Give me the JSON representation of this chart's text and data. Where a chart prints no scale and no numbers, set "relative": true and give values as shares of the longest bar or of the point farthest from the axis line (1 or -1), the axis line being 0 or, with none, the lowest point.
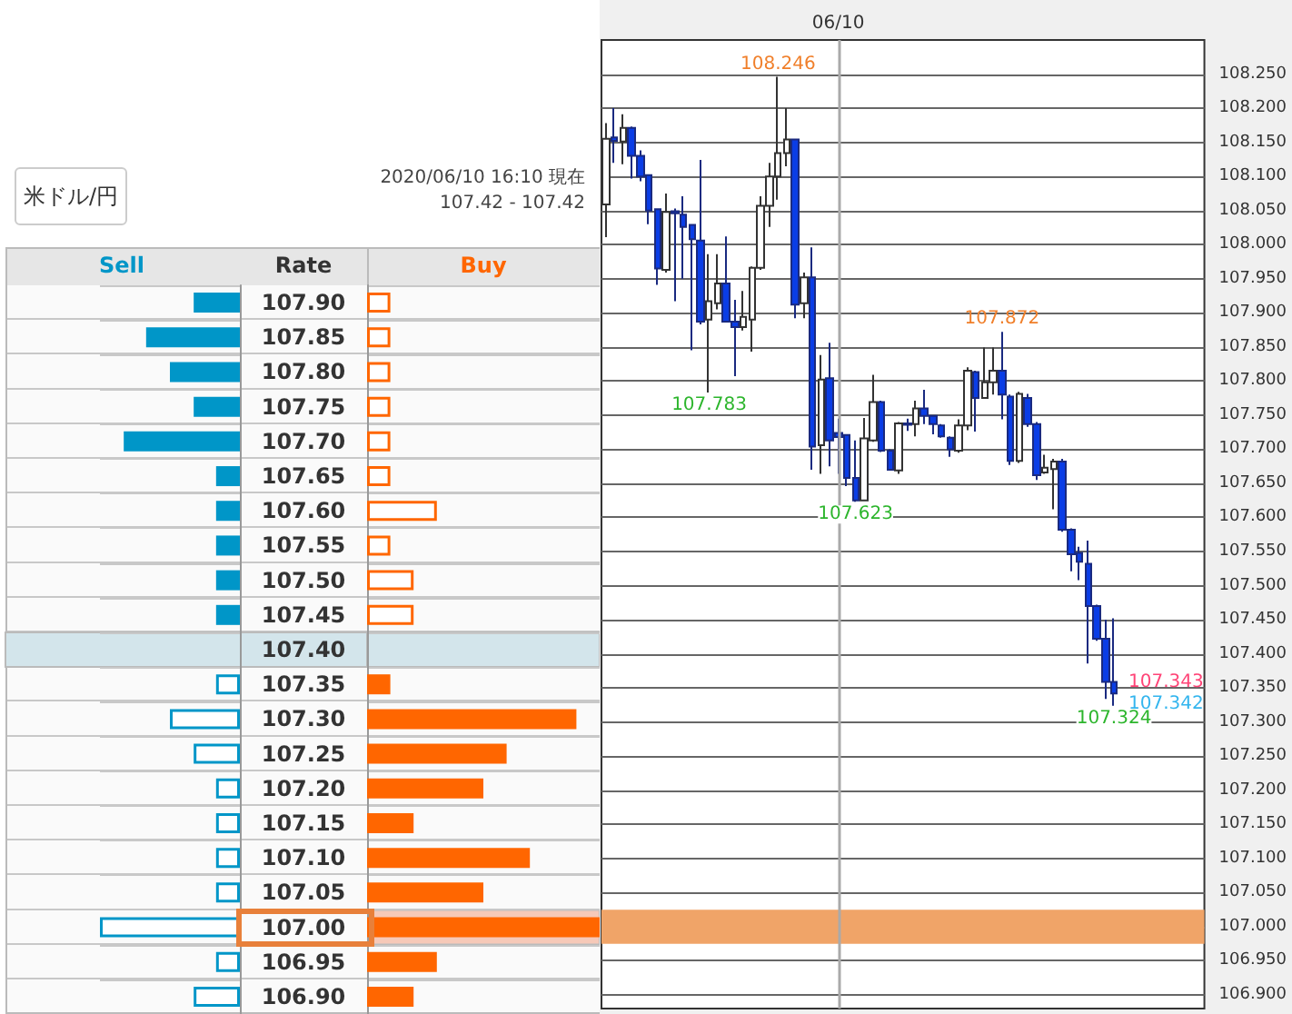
{
  "chart_data": [
    {
      "type": "bar",
      "orientation": "horizontal",
      "relative": true,
      "title": "米ドル/円",
      "ylabel": "Rate",
      "grid": "y",
      "tick_labels": "y",
      "categories": [
        "107.90",
        "107.85",
        "107.80",
        "107.75",
        "107.70",
        "107.65",
        "107.60",
        "107.55",
        "107.50",
        "107.45",
        "107.40",
        "107.35",
        "107.30",
        "107.25",
        "107.20",
        "107.15",
        "107.10",
        "107.05",
        "107.00",
        "106.95",
        "106.90"
      ],
      "series": [
        {
          "name": "Sell",
          "color": "#0096c8",
          "values": [
            0.33,
            0.67,
            0.5,
            0.33,
            0.83,
            0.17,
            0.17,
            0.17,
            0.17,
            0.17,
            0,
            0.17,
            0.5,
            0.33,
            0.17,
            0.17,
            0.17,
            0.17,
            1,
            0.17,
            0.33
          ]
        }
      ],
      "bands": [
        {
          "axis": "y",
          "from": "107.40",
          "to": "107.40",
          "color": "#d3e5eb"
        }
      ]
    },
    {
      "type": "bar",
      "orientation": "horizontal",
      "relative": true,
      "subtitle": "2020/06/10 16:10 現在",
      "annotations": [
        "107.42 - 107.42"
      ],
      "grid": "y",
      "tick_labels": false,
      "categories": [
        "107.90",
        "107.85",
        "107.80",
        "107.75",
        "107.70",
        "107.65",
        "107.60",
        "107.55",
        "107.50",
        "107.45",
        "107.40",
        "107.35",
        "107.30",
        "107.25",
        "107.20",
        "107.15",
        "107.10",
        "107.05",
        "107.00",
        "106.95",
        "106.90"
      ],
      "series": [
        {
          "name": "Buy",
          "color": "#ff6600",
          "values": [
            0.1,
            0.1,
            0.1,
            0.1,
            0.1,
            0.1,
            0.3,
            0.1,
            0.2,
            0.2,
            0,
            0.1,
            0.9,
            0.6,
            0.5,
            0.2,
            0.7,
            0.5,
            1,
            0.3,
            0.2
          ]
        }
      ],
      "bands": [
        {
          "axis": "y",
          "from": "107.40",
          "to": "107.40",
          "color": "#d3e5eb"
        },
        {
          "axis": "y",
          "from": "107.00",
          "to": "107.00",
          "color": "#f6c9b8"
        }
      ]
    },
    {
      "type": "candlestick",
      "grid": "y",
      "categories": [
        null,
        null,
        null,
        null,
        null,
        null,
        null,
        null,
        null,
        null,
        null,
        null,
        null,
        null,
        null,
        null,
        null,
        null,
        null,
        null,
        null,
        null,
        null,
        null,
        null,
        null,
        null,
        "06/10",
        null,
        null,
        null,
        null,
        null,
        null,
        null,
        null,
        null,
        null,
        null,
        null,
        null,
        null,
        null,
        null,
        null,
        null,
        null,
        null,
        null,
        null,
        null,
        null,
        null,
        null,
        null,
        null,
        null,
        null,
        null,
        null,
        null,
        null,
        null,
        null,
        null,
        null,
        null,
        null,
        null,
        null
      ],
      "ohlc": [
        [
          108.059,
          108.178,
          108.011,
          108.155
        ],
        [
          108.157,
          108.2,
          108.12,
          108.152
        ],
        [
          108.151,
          108.191,
          108.118,
          108.171
        ],
        [
          108.171,
          108.173,
          108.097,
          108.13
        ],
        [
          108.13,
          108.138,
          108.093,
          108.1
        ],
        [
          108.102,
          108.102,
          108.03,
          108.05
        ],
        [
          108.052,
          108.052,
          107.941,
          107.965
        ],
        [
          107.963,
          108.075,
          107.959,
          108.048
        ],
        [
          108.049,
          108.053,
          107.917,
          108.046
        ],
        [
          108.044,
          108.071,
          107.95,
          108.026
        ],
        [
          108.029,
          108.03,
          107.845,
          108.008
        ],
        [
          108.006,
          108.124,
          107.883,
          107.887
        ],
        [
          107.89,
          107.986,
          107.783,
          107.917
        ],
        [
          107.914,
          107.986,
          107.905,
          107.943
        ],
        [
          107.943,
          108.012,
          107.886,
          107.887
        ],
        [
          107.887,
          107.919,
          107.807,
          107.879
        ],
        [
          107.879,
          107.932,
          107.874,
          107.894
        ],
        [
          107.89,
          107.968,
          107.843,
          107.966
        ],
        [
          107.966,
          108.071,
          107.963,
          108.057
        ],
        [
          108.057,
          108.12,
          108.026,
          108.1
        ],
        [
          108.1,
          108.246,
          108.066,
          108.134
        ],
        [
          108.134,
          108.2,
          108.115,
          108.154
        ],
        [
          108.154,
          108.155,
          107.892,
          107.912
        ],
        [
          107.914,
          107.959,
          107.892,
          107.952
        ],
        [
          107.952,
          107.996,
          107.67,
          107.704
        ],
        [
          107.706,
          107.838,
          107.664,
          107.802
        ],
        [
          107.804,
          107.856,
          107.675,
          107.713
        ],
        [
          107.724,
          107.745,
          107.664,
          107.718
        ],
        [
          107.721,
          107.722,
          107.646,
          107.658
        ],
        [
          107.658,
          107.713,
          107.623,
          107.625
        ],
        [
          107.625,
          107.746,
          107.624,
          107.716
        ],
        [
          107.713,
          107.809,
          107.711,
          107.769
        ],
        [
          107.769,
          107.771,
          107.696,
          107.698
        ],
        [
          107.698,
          107.7,
          107.669,
          107.67
        ],
        [
          107.669,
          107.74,
          107.664,
          107.738
        ],
        [
          107.738,
          107.745,
          107.727,
          107.736
        ],
        [
          107.737,
          107.771,
          107.719,
          107.76
        ],
        [
          107.76,
          107.787,
          107.737,
          107.749
        ],
        [
          107.749,
          107.749,
          107.722,
          107.737
        ],
        [
          107.735,
          107.737,
          107.717,
          107.719
        ],
        [
          107.717,
          107.719,
          107.689,
          107.7
        ],
        [
          107.698,
          107.744,
          107.695,
          107.735
        ],
        [
          107.735,
          107.82,
          107.728,
          107.815
        ],
        [
          107.813,
          107.815,
          107.726,
          107.775
        ],
        [
          107.775,
          107.849,
          107.775,
          107.798
        ],
        [
          107.798,
          107.849,
          107.78,
          107.815
        ],
        [
          107.815,
          107.872,
          107.744,
          107.78
        ],
        [
          107.777,
          107.78,
          107.677,
          107.683
        ],
        [
          107.683,
          107.784,
          107.68,
          107.781
        ],
        [
          107.775,
          107.781,
          107.733,
          107.737
        ],
        [
          107.737,
          107.74,
          107.655,
          107.662
        ],
        [
          107.666,
          107.692,
          107.664,
          107.673
        ],
        [
          107.671,
          107.686,
          107.612,
          107.682
        ],
        [
          107.682,
          107.686,
          107.579,
          107.582
        ],
        [
          107.582,
          107.584,
          107.521,
          107.546
        ],
        [
          107.548,
          107.557,
          107.508,
          107.535
        ],
        [
          107.532,
          107.566,
          107.386,
          107.47
        ],
        [
          107.47,
          107.472,
          107.419,
          107.422
        ],
        [
          107.422,
          107.45,
          107.334,
          107.359
        ],
        [
          107.359,
          107.452,
          107.324,
          107.342
        ],
        null,
        null,
        null,
        null,
        null,
        null,
        null,
        null,
        null,
        null
      ],
      "ylim": [
        106.88,
        108.3
      ],
      "yticks": [
        {
          "value": 106.9,
          "label": "106.900"
        },
        {
          "value": 106.95,
          "label": "106.950"
        },
        {
          "value": 107,
          "label": "107.000"
        },
        {
          "value": 107.05,
          "label": "107.050"
        },
        {
          "value": 107.1,
          "label": "107.100"
        },
        {
          "value": 107.15,
          "label": "107.150"
        },
        {
          "value": 107.2,
          "label": "107.200"
        },
        {
          "value": 107.25,
          "label": "107.250"
        },
        {
          "value": 107.3,
          "label": "107.300"
        },
        {
          "value": 107.35,
          "label": "107.350"
        },
        {
          "value": 107.4,
          "label": "107.400"
        },
        {
          "value": 107.45,
          "label": "107.450"
        },
        {
          "value": 107.5,
          "label": "107.500"
        },
        {
          "value": 107.55,
          "label": "107.550"
        },
        {
          "value": 107.6,
          "label": "107.600"
        },
        {
          "value": 107.65,
          "label": "107.650"
        },
        {
          "value": 107.7,
          "label": "107.700"
        },
        {
          "value": 107.75,
          "label": "107.750"
        },
        {
          "value": 107.8,
          "label": "107.800"
        },
        {
          "value": 107.85,
          "label": "107.850"
        },
        {
          "value": 107.9,
          "label": "107.900"
        },
        {
          "value": 107.95,
          "label": "107.950"
        },
        {
          "value": 108,
          "label": "108.000"
        },
        {
          "value": 108.05,
          "label": "108.050"
        },
        {
          "value": 108.1,
          "label": "108.100"
        },
        {
          "value": 108.15,
          "label": "108.150"
        },
        {
          "value": 108.2,
          "label": "108.200"
        },
        {
          "value": 108.25,
          "label": "108.250"
        }
      ],
      "annotations": [
        {
          "text": "108.246",
          "y": 108.246
        },
        {
          "text": "107.783",
          "y": 107.783
        },
        {
          "text": "107.623",
          "y": 107.623
        },
        {
          "text": "107.872",
          "y": 107.872
        },
        {
          "text": "107.324",
          "y": 107.324
        },
        "107.343",
        "107.342"
      ],
      "bands": [
        {
          "axis": "y",
          "from": 106.975,
          "to": 107.025,
          "color": "#f0a468"
        }
      ],
      "ref_lines": [
        {
          "axis": "x",
          "value": "06/10",
          "color": "#aaaaaa"
        }
      ]
    }
  ]
}
